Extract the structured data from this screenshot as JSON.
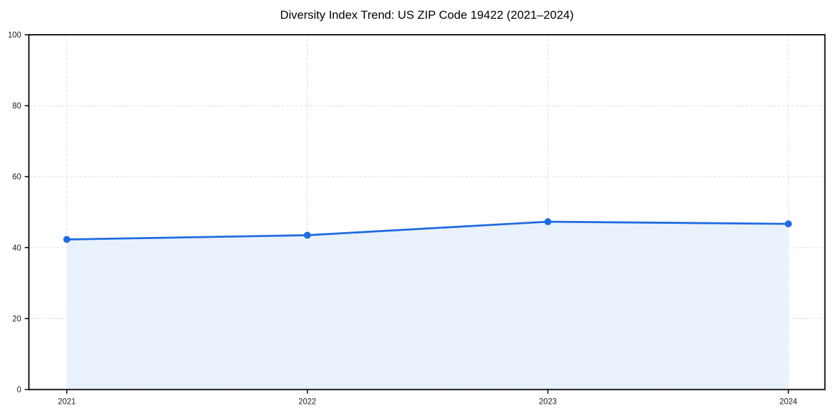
{
  "page": {
    "background": "#ffffff"
  },
  "chart_data": {
    "type": "line",
    "title": "Diversity Index Trend: US ZIP Code 19422 (2021–2024)",
    "categories": [
      "2021",
      "2022",
      "2023",
      "2024"
    ],
    "series": [
      {
        "name": "Diversity Index",
        "values": [
          42.3,
          43.5,
          47.3,
          46.7
        ]
      }
    ],
    "xlabel": "",
    "ylabel": "",
    "ylim": [
      0,
      100
    ],
    "yticks": [
      0,
      20,
      40,
      60,
      80,
      100
    ],
    "grid": true,
    "grid_line_style": "dashed",
    "legend_position": "none",
    "area_fill_between_first_and_last_points": true,
    "marker": "circle",
    "colors": {
      "line": "#1f6be0",
      "marker": "#1f6be0",
      "fill": "#e9f1fc",
      "grid": "#e2e2e2",
      "spine": "#000000",
      "tick_label": "#1a1a1a",
      "title": "#000000"
    }
  }
}
